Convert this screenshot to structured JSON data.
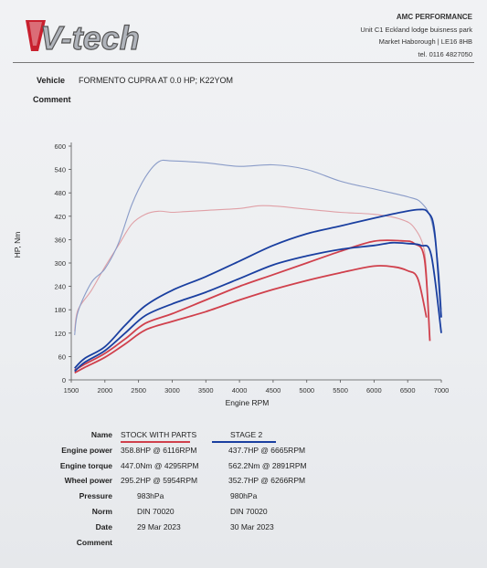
{
  "header": {
    "logo_text": "V-tech",
    "company": "AMC PERFORMANCE",
    "address_line1": "Unit C1   Eckland lodge buisness park",
    "address_line2": "Market Haborough | LE16 8HB",
    "phone": "tel. 0116 4827050"
  },
  "vehicle": {
    "label": "Vehicle",
    "value": "FORMENTO CUPRA AT 0.0 HP; K22YOM"
  },
  "comment": {
    "label": "Comment"
  },
  "chart_data": {
    "type": "line",
    "xlabel": "Engine RPM",
    "ylabel": "HP, Nm",
    "xlim": [
      1500,
      7000
    ],
    "ylim": [
      0,
      600
    ],
    "x_ticks": [
      1500,
      2000,
      2500,
      3000,
      3500,
      4000,
      4500,
      5000,
      5500,
      6000,
      6500,
      7000
    ],
    "y_ticks": [
      0,
      60,
      120,
      180,
      240,
      300,
      360,
      420,
      480,
      540,
      600
    ],
    "grid": false,
    "colors": {
      "stock": "#d0404c",
      "stock_light": "#e0a0a6",
      "stage2": "#1a3fa0",
      "stage2_light": "#8a9cc8"
    },
    "series": [
      {
        "name": "STOCK WITH PARTS",
        "kind": "torque",
        "x": [
          1550,
          1600,
          1800,
          2000,
          2200,
          2400,
          2600,
          2800,
          3000,
          3200,
          3500,
          4000,
          4300,
          4600,
          5000,
          5500,
          6000,
          6400,
          6600,
          6750,
          6800,
          6830
        ],
        "y": [
          125,
          180,
          230,
          290,
          345,
          400,
          425,
          433,
          430,
          432,
          435,
          440,
          447,
          445,
          438,
          430,
          425,
          412,
          390,
          330,
          200,
          100
        ]
      },
      {
        "name": "STOCK WITH PARTS",
        "kind": "power",
        "x": [
          1550,
          1700,
          2000,
          2300,
          2600,
          3000,
          3500,
          4000,
          4500,
          5000,
          5500,
          6000,
          6400,
          6600,
          6750,
          6830
        ],
        "y": [
          25,
          40,
          68,
          105,
          145,
          170,
          205,
          240,
          270,
          300,
          330,
          356,
          357,
          350,
          310,
          100
        ]
      },
      {
        "name": "STOCK WITH PARTS",
        "kind": "wheel",
        "x": [
          1550,
          1700,
          2000,
          2300,
          2600,
          3000,
          3500,
          4000,
          4500,
          5000,
          5500,
          6000,
          6300,
          6500,
          6650,
          6780
        ],
        "y": [
          18,
          32,
          58,
          92,
          128,
          150,
          175,
          205,
          232,
          255,
          275,
          292,
          290,
          280,
          260,
          160
        ]
      },
      {
        "name": "STAGE 2",
        "kind": "torque",
        "x": [
          1550,
          1600,
          1800,
          2000,
          2200,
          2400,
          2600,
          2800,
          3000,
          3500,
          4000,
          4500,
          5000,
          5500,
          6000,
          6500,
          6700,
          6850,
          6950,
          7000
        ],
        "y": [
          115,
          175,
          250,
          285,
          350,
          450,
          520,
          560,
          562,
          557,
          548,
          552,
          540,
          510,
          490,
          470,
          455,
          410,
          300,
          180
        ]
      },
      {
        "name": "STAGE 2",
        "kind": "power",
        "x": [
          1550,
          1700,
          2000,
          2300,
          2600,
          3000,
          3500,
          4000,
          4500,
          5000,
          5500,
          6000,
          6400,
          6665,
          6800,
          6900,
          7000
        ],
        "y": [
          30,
          55,
          85,
          140,
          190,
          230,
          265,
          305,
          345,
          375,
          395,
          415,
          430,
          437,
          430,
          380,
          160
        ]
      },
      {
        "name": "STAGE 2",
        "kind": "wheel",
        "x": [
          1550,
          1700,
          2000,
          2300,
          2600,
          3000,
          3500,
          4000,
          4500,
          5000,
          5500,
          6000,
          6266,
          6500,
          6700,
          6850,
          7000
        ],
        "y": [
          22,
          45,
          75,
          120,
          165,
          195,
          225,
          260,
          295,
          318,
          335,
          345,
          352,
          350,
          345,
          320,
          120
        ]
      }
    ]
  },
  "results": {
    "rows": [
      {
        "label": "Name",
        "stock": "STOCK WITH PARTS",
        "stage2": "STAGE 2"
      },
      {
        "label": "Engine power",
        "stock": "358.8HP @ 6116RPM",
        "stage2": "437.7HP @ 6665RPM"
      },
      {
        "label": "Engine torque",
        "stock": "447.0Nm @ 4295RPM",
        "stage2": "562.2Nm @ 2891RPM"
      },
      {
        "label": "Wheel power",
        "stock": "295.2HP @ 5954RPM",
        "stage2": "352.7HP @ 6266RPM"
      },
      {
        "label": "Pressure",
        "stock": "983hPa",
        "stage2": "980hPa"
      },
      {
        "label": "Norm",
        "stock": "DIN 70020",
        "stage2": "DIN 70020"
      },
      {
        "label": "Date",
        "stock": "29 Mar 2023",
        "stage2": "30 Mar 2023"
      },
      {
        "label": "Comment",
        "stock": "",
        "stage2": ""
      }
    ]
  }
}
